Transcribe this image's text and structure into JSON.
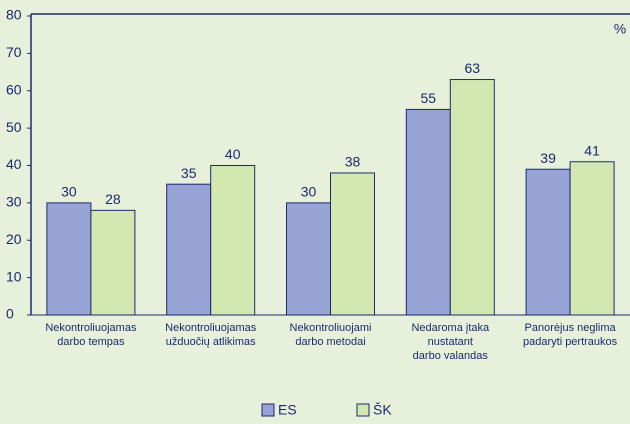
{
  "chart_data": {
    "type": "bar",
    "unit_label": "%",
    "categories": [
      [
        "Nekontroliuojamas",
        "darbo tempas"
      ],
      [
        "Nekontroliuojamas",
        "užduočių atlikimas"
      ],
      [
        "Nekontroliuojami",
        "darbo metodai"
      ],
      [
        "Nedaroma įtaka",
        "nustatant",
        "darbo valandas"
      ],
      [
        "Panorėjus neglima",
        "padaryti pertraukos"
      ]
    ],
    "series": [
      {
        "name": "ES",
        "color": "#97a3d4",
        "values": [
          30,
          35,
          30,
          55,
          39
        ]
      },
      {
        "name": "ŠK",
        "color": "#d3e8b1",
        "values": [
          28,
          40,
          38,
          63,
          41
        ]
      }
    ],
    "ylim": [
      0,
      80
    ],
    "yticks": [
      0,
      10,
      20,
      30,
      40,
      50,
      60,
      70,
      80
    ],
    "legend": "bottom"
  }
}
